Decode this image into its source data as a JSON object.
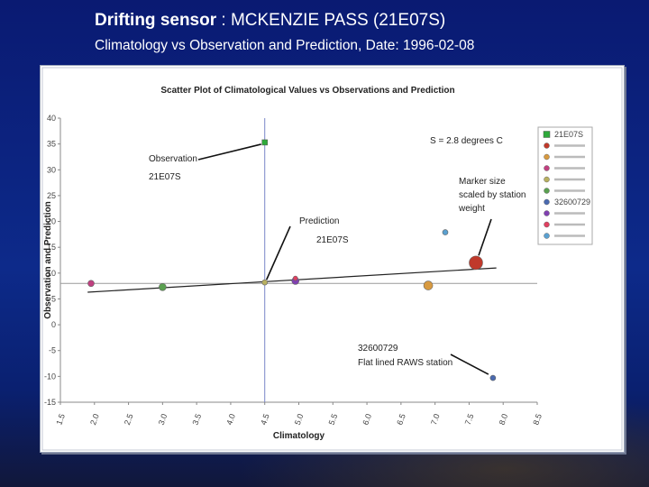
{
  "slide": {
    "title_bold": "Drifting sensor",
    "title_rest": " : MCKENZIE PASS (21E07S)",
    "subtitle": "Climatology vs Observation and Prediction, Date: 1996-02-08"
  },
  "chart_data": {
    "type": "scatter",
    "title": "Scatter Plot of Climatological Values vs Observations and Prediction",
    "xlabel": "Climatology",
    "ylabel": "Observation and Prediction",
    "xlim": [
      1.5,
      8.5
    ],
    "ylim": [
      -15,
      40
    ],
    "x_ticks": [
      "1.5",
      "2.0",
      "2.5",
      "3.0",
      "3.5",
      "4.0",
      "4.5",
      "5.0",
      "5.5",
      "6.0",
      "6.5",
      "7.0",
      "7.5",
      "8.0",
      "8.5"
    ],
    "y_ticks": [
      "40",
      "35",
      "30",
      "25",
      "20",
      "15",
      "10",
      "5",
      "0",
      "-5",
      "-10",
      "-15"
    ],
    "grid": false,
    "legend_position": "right",
    "reference_lines": {
      "x": 4.5,
      "y": 8
    },
    "regression_line": {
      "x": [
        1.9,
        7.9
      ],
      "y": [
        6.3,
        11.0
      ]
    },
    "series": [
      {
        "name": "21E07S",
        "color": "#2eaa3a",
        "points": [
          {
            "x": 4.5,
            "y": 35.3,
            "size": 4
          }
        ]
      },
      {
        "name": "",
        "color": "#c0392b",
        "points": [
          {
            "x": 7.6,
            "y": 12.0,
            "size": 13
          }
        ]
      },
      {
        "name": "",
        "color": "#d89a40",
        "points": [
          {
            "x": 6.9,
            "y": 7.6,
            "size": 8
          }
        ]
      },
      {
        "name": "",
        "color": "#c04080",
        "points": [
          {
            "x": 1.95,
            "y": 8.0,
            "size": 5
          }
        ]
      },
      {
        "name": "",
        "color": "#b8b060",
        "points": [
          {
            "x": 4.5,
            "y": 8.2,
            "size": 4
          }
        ]
      },
      {
        "name": "",
        "color": "#5aa050",
        "points": [
          {
            "x": 3.0,
            "y": 7.3,
            "size": 6
          }
        ]
      },
      {
        "name": "32600729",
        "color": "#4a6ab0",
        "points": [
          {
            "x": 7.85,
            "y": -10.3,
            "size": 4
          }
        ]
      },
      {
        "name": "",
        "color": "#8040b0",
        "points": [
          {
            "x": 4.95,
            "y": 8.5,
            "size": 6
          }
        ]
      },
      {
        "name": "",
        "color": "#e04060",
        "points": [
          {
            "x": 4.95,
            "y": 9.0,
            "size": 3
          }
        ]
      },
      {
        "name": "",
        "color": "#5aa0d0",
        "points": [
          {
            "x": 7.15,
            "y": 17.9,
            "size": 4
          }
        ]
      }
    ],
    "annotations": [
      {
        "text": "S = 2.8 degrees C"
      },
      {
        "text": "Observation"
      },
      {
        "text": "21E07S"
      },
      {
        "text": "Prediction"
      },
      {
        "text": "21E07S"
      },
      {
        "text": "Marker size"
      },
      {
        "text": "scaled by station"
      },
      {
        "text": "weight"
      },
      {
        "text": "32600729"
      },
      {
        "text": "Flat lined RAWS station"
      }
    ]
  }
}
